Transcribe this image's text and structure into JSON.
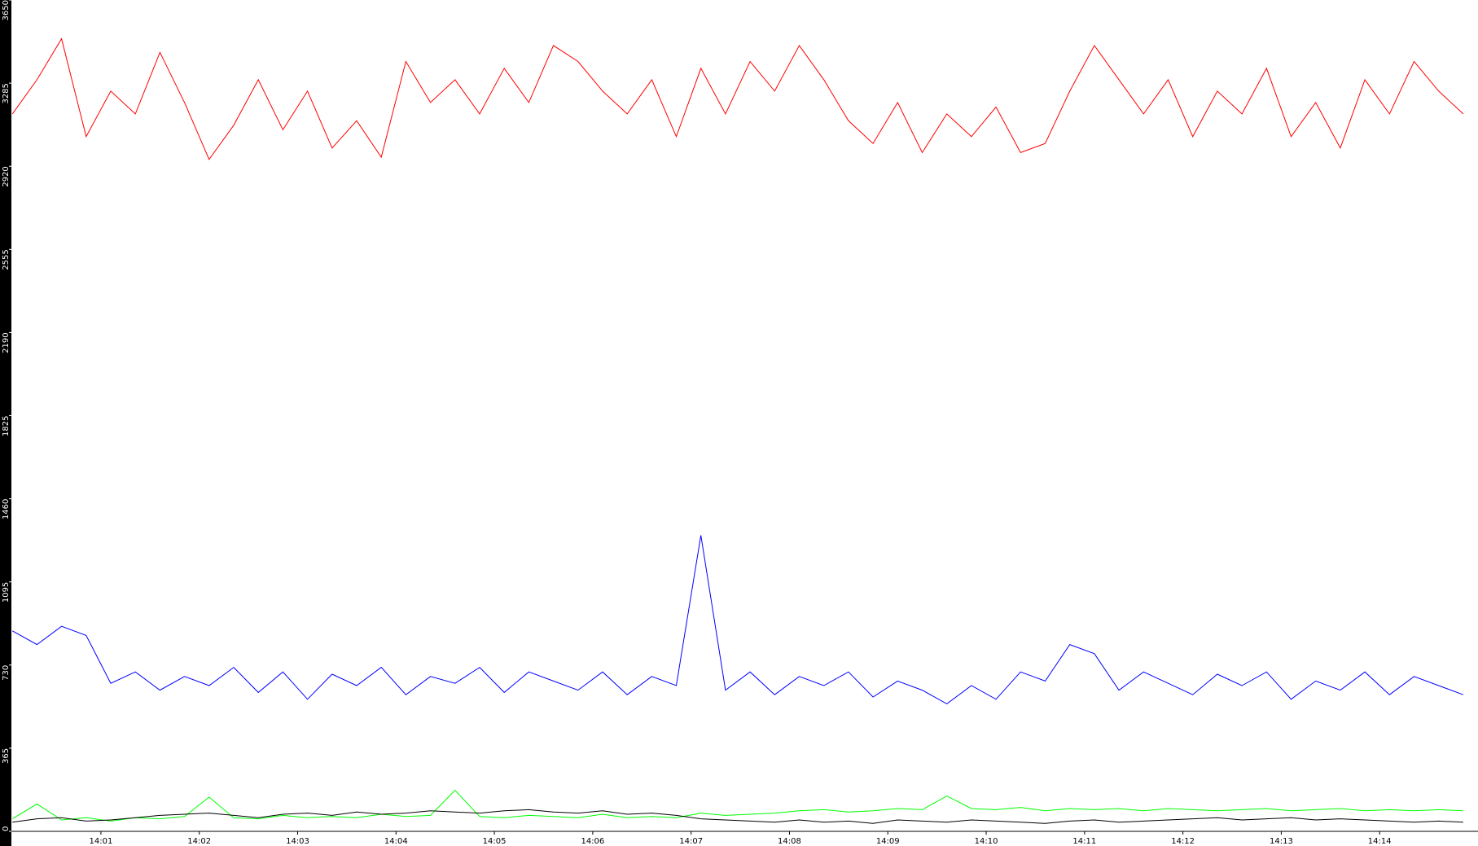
{
  "chart_data": {
    "type": "line",
    "x": [
      0.1,
      0.35,
      0.6,
      0.85,
      1.1,
      1.35,
      1.6,
      1.85,
      2.1,
      2.35,
      2.6,
      2.85,
      3.1,
      3.35,
      3.6,
      3.85,
      4.1,
      4.35,
      4.6,
      4.85,
      5.1,
      5.35,
      5.6,
      5.85,
      6.1,
      6.35,
      6.6,
      6.85,
      7.1,
      7.35,
      7.6,
      7.85,
      8.1,
      8.35,
      8.6,
      8.85,
      9.1,
      9.35,
      9.6,
      9.85,
      10.1,
      10.35,
      10.6,
      10.85,
      11.1,
      11.35,
      11.6,
      11.85,
      12.1,
      12.35,
      12.6,
      12.85,
      13.1,
      13.35,
      13.6,
      13.85,
      14.1,
      14.35,
      14.6,
      14.85
    ],
    "series": [
      {
        "name": "red",
        "color": "#ff0000",
        "values": [
          3150,
          3300,
          3480,
          3050,
          3250,
          3150,
          3420,
          3200,
          2950,
          3100,
          3300,
          3080,
          3250,
          3000,
          3120,
          2960,
          3380,
          3200,
          3300,
          3150,
          3350,
          3200,
          3450,
          3380,
          3250,
          3150,
          3300,
          3050,
          3350,
          3150,
          3380,
          3250,
          3450,
          3300,
          3120,
          3020,
          3200,
          2980,
          3150,
          3050,
          3180,
          2980,
          3020,
          3250,
          3450,
          3300,
          3150,
          3300,
          3050,
          3250,
          3150,
          3350,
          3050,
          3200,
          3000,
          3300,
          3150,
          3380,
          3250,
          3150
        ]
      },
      {
        "name": "blue",
        "color": "#0000ff",
        "values": [
          880,
          820,
          900,
          860,
          650,
          700,
          620,
          680,
          640,
          720,
          610,
          700,
          580,
          690,
          640,
          720,
          600,
          680,
          650,
          720,
          610,
          700,
          660,
          620,
          700,
          600,
          680,
          640,
          1300,
          620,
          700,
          600,
          680,
          640,
          700,
          590,
          660,
          620,
          560,
          640,
          580,
          700,
          660,
          820,
          780,
          620,
          700,
          650,
          600,
          690,
          640,
          700,
          580,
          660,
          620,
          700,
          600,
          680,
          640,
          600
        ]
      },
      {
        "name": "green",
        "color": "#00ff00",
        "values": [
          55,
          120,
          50,
          60,
          45,
          60,
          55,
          65,
          150,
          60,
          55,
          70,
          60,
          65,
          60,
          75,
          65,
          70,
          180,
          65,
          60,
          70,
          65,
          60,
          75,
          60,
          65,
          60,
          80,
          70,
          75,
          80,
          90,
          95,
          85,
          90,
          100,
          95,
          155,
          100,
          95,
          105,
          90,
          100,
          95,
          100,
          90,
          100,
          95,
          90,
          95,
          100,
          90,
          95,
          100,
          90,
          95,
          90,
          95,
          90
        ]
      },
      {
        "name": "black",
        "color": "#000000",
        "values": [
          40,
          55,
          60,
          45,
          50,
          60,
          70,
          75,
          80,
          70,
          60,
          75,
          80,
          70,
          85,
          75,
          80,
          90,
          85,
          80,
          90,
          95,
          85,
          80,
          90,
          75,
          80,
          70,
          55,
          50,
          45,
          40,
          50,
          40,
          45,
          35,
          50,
          45,
          40,
          50,
          45,
          40,
          35,
          45,
          50,
          40,
          45,
          50,
          55,
          60,
          50,
          55,
          60,
          50,
          55,
          50,
          45,
          40,
          45,
          40
        ]
      }
    ],
    "xlim": [
      0.09,
      15.0
    ],
    "xticks": [
      {
        "value": 1,
        "label": "14:01"
      },
      {
        "value": 2,
        "label": "14:02"
      },
      {
        "value": 3,
        "label": "14:03"
      },
      {
        "value": 4,
        "label": "14:04"
      },
      {
        "value": 5,
        "label": "14:05"
      },
      {
        "value": 6,
        "label": "14:06"
      },
      {
        "value": 7,
        "label": "14:07"
      },
      {
        "value": 8,
        "label": "14:08"
      },
      {
        "value": 9,
        "label": "14:09"
      },
      {
        "value": 10,
        "label": "14:10"
      },
      {
        "value": 11,
        "label": "14:11"
      },
      {
        "value": 12,
        "label": "14:12"
      },
      {
        "value": 13,
        "label": "14:13"
      },
      {
        "value": 14,
        "label": "14:14"
      }
    ],
    "ylim": [
      0,
      3650
    ],
    "yticks": [
      0,
      365,
      730,
      1095,
      1460,
      1825,
      2190,
      2555,
      2920,
      3285,
      3650
    ]
  }
}
